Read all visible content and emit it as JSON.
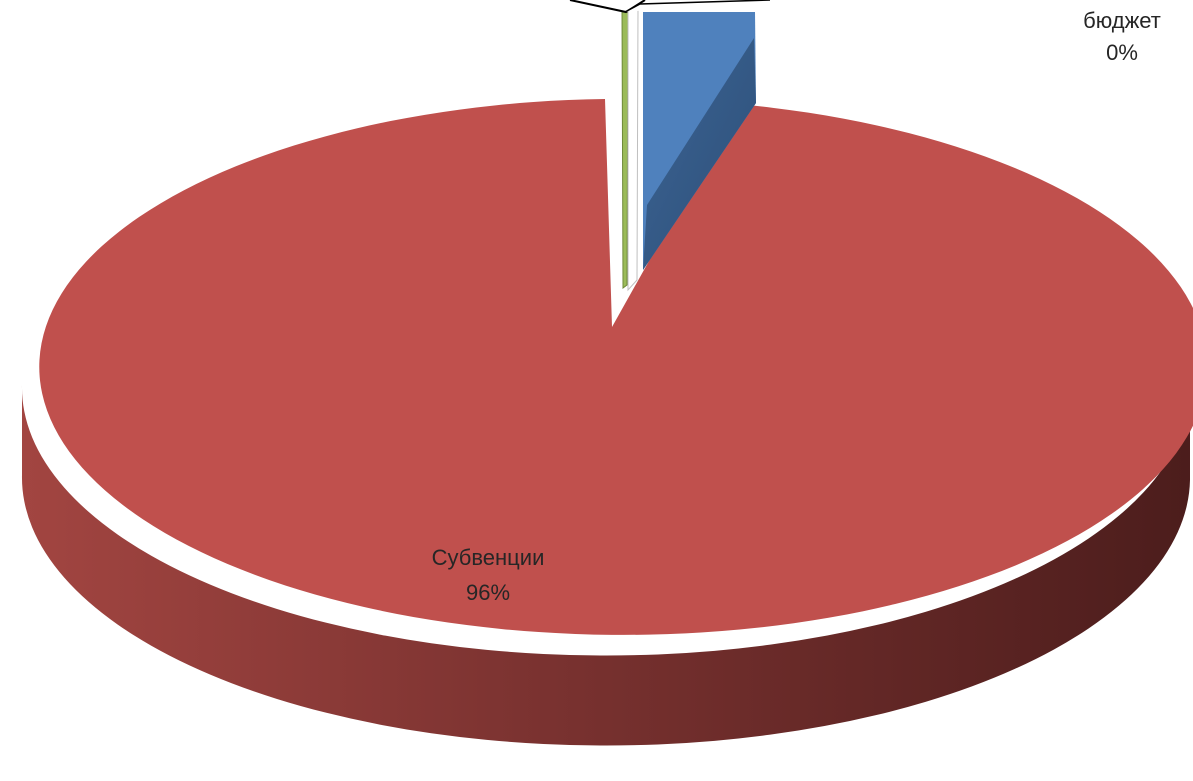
{
  "chart_data": {
    "type": "pie",
    "three_d": true,
    "exploded": true,
    "legend": "none",
    "slices": [
      {
        "label": "",
        "value": 3.6,
        "percent_label": "",
        "color": "#4f81bd"
      },
      {
        "label": "Субвенции",
        "value": 95.8,
        "percent_label": "96%",
        "color": "#c0504d"
      },
      {
        "label": "",
        "value": 0.3,
        "percent_label": "",
        "color": "#9bbb59"
      },
      {
        "label": "бюджет",
        "value": 0.3,
        "percent_label": "0%",
        "color": "#ffffff"
      }
    ]
  }
}
